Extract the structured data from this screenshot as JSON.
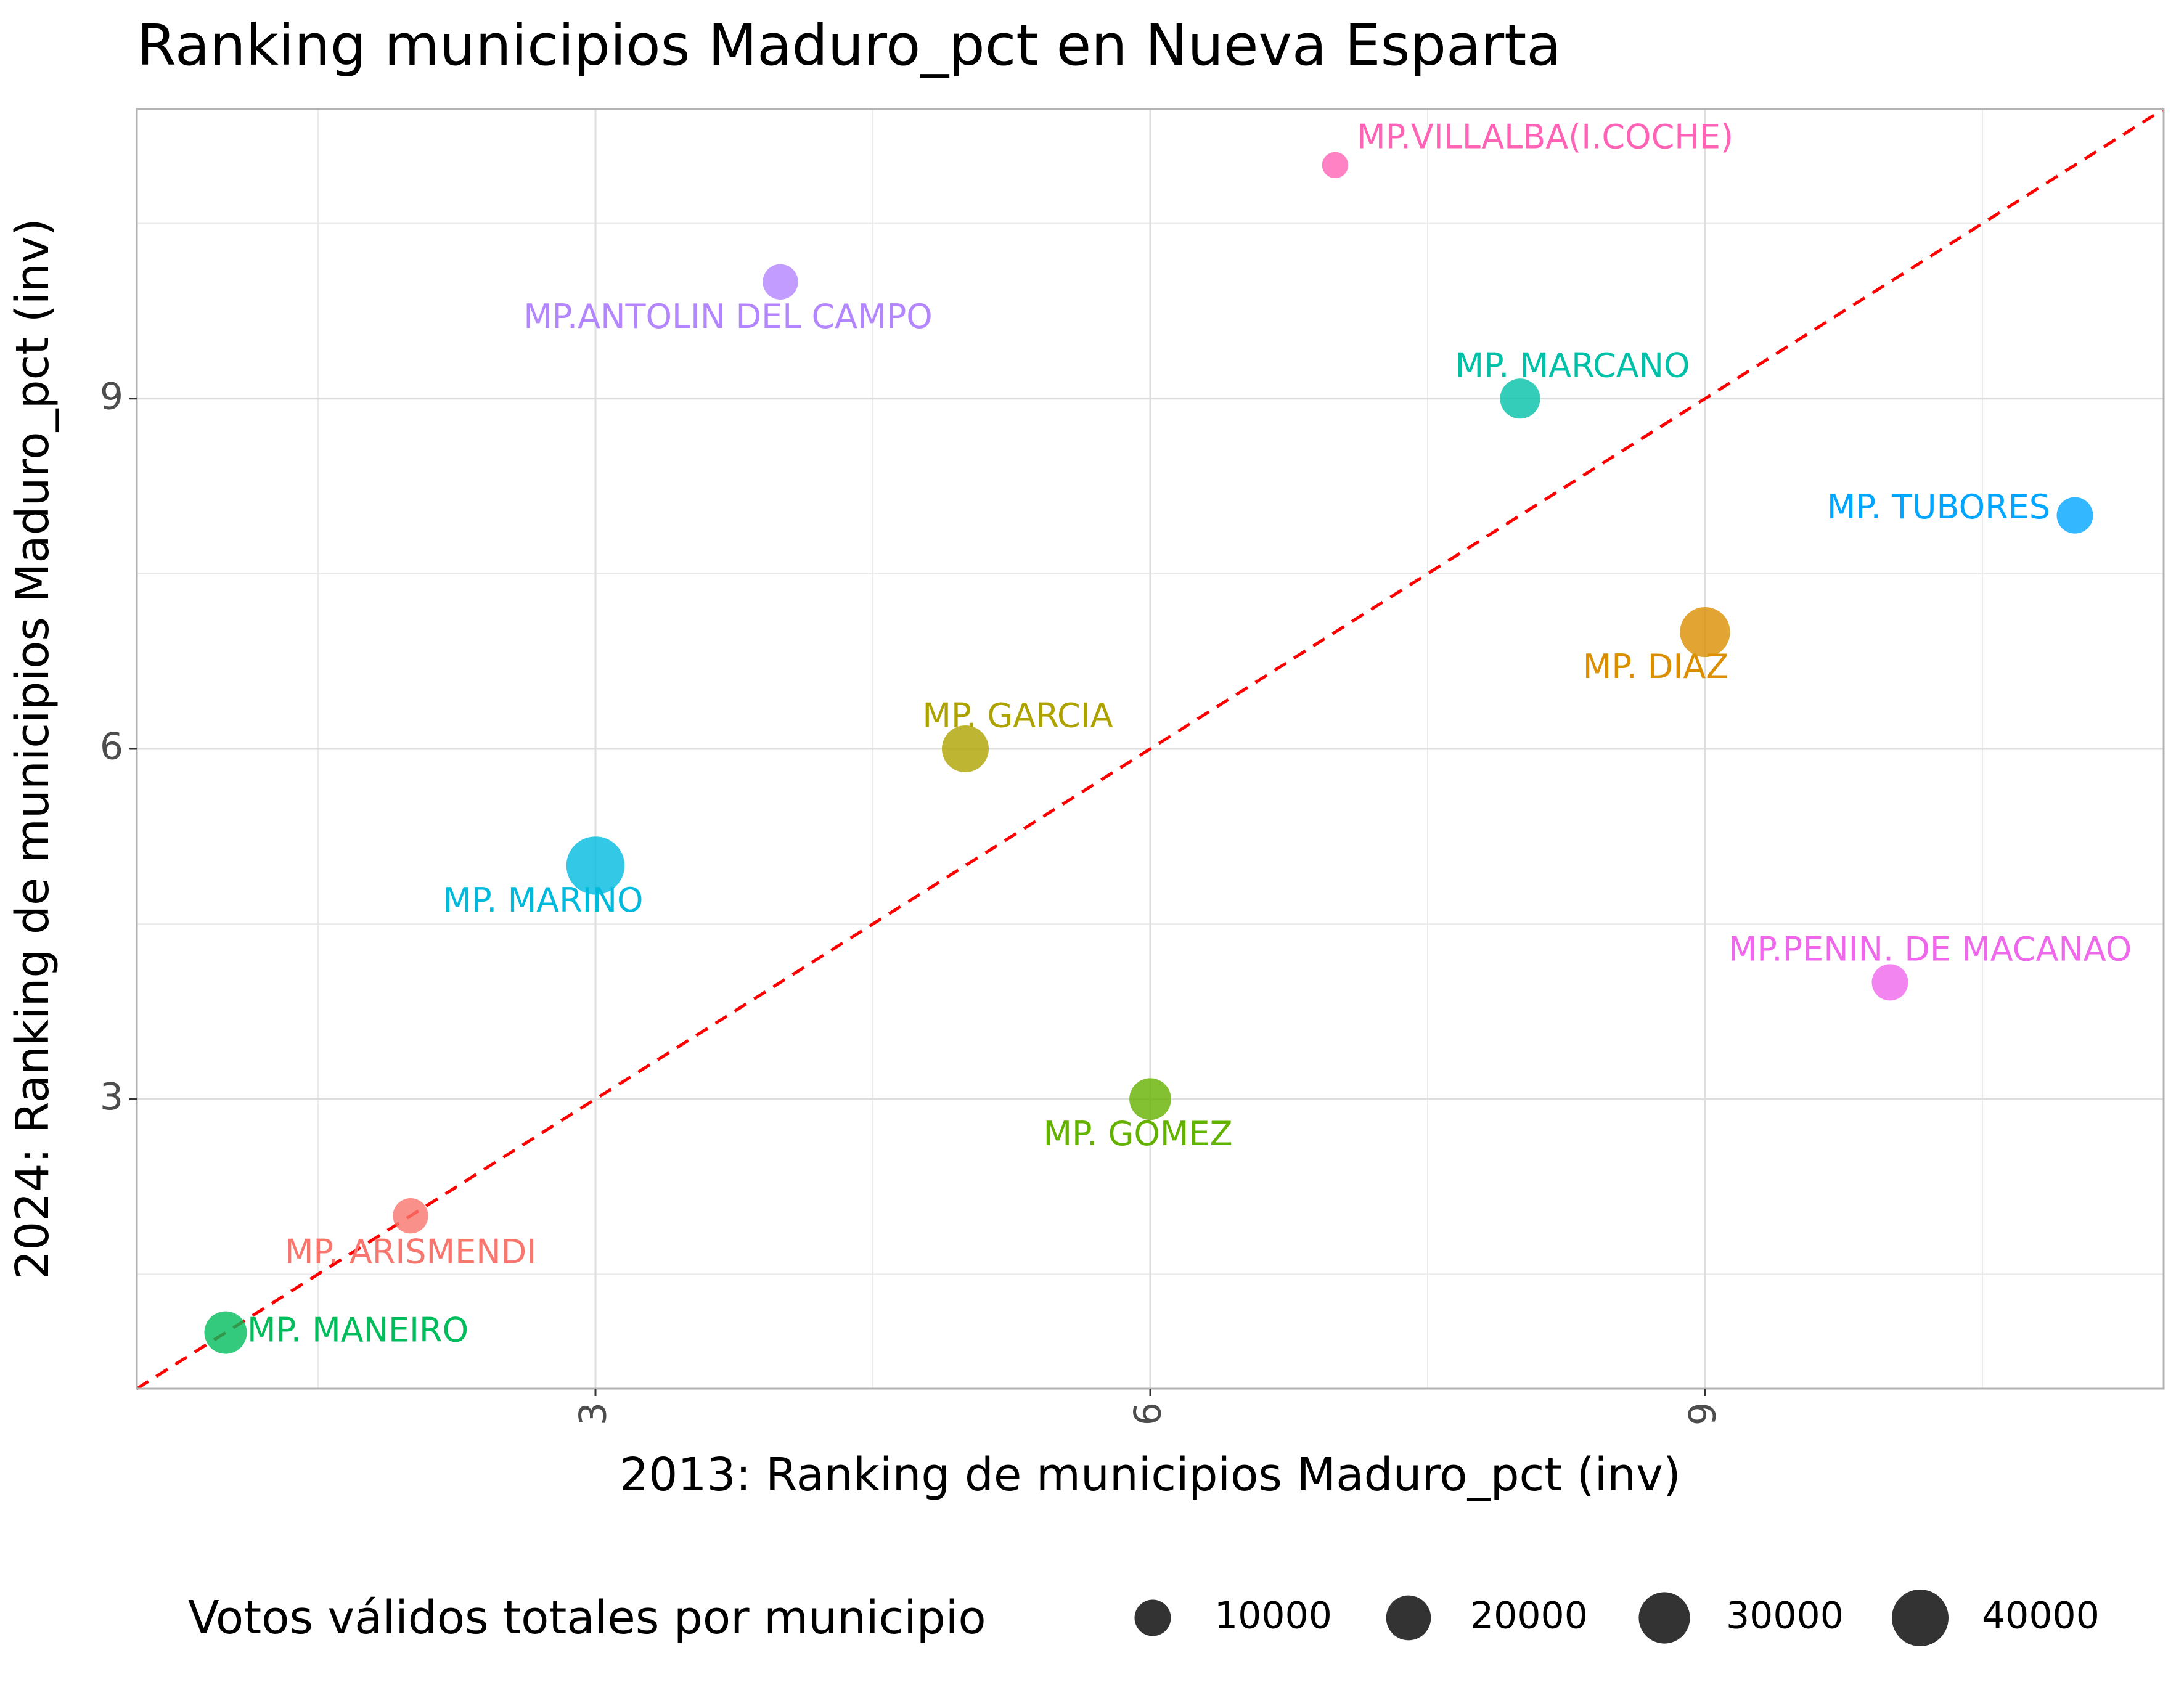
{
  "chart_data": {
    "type": "scatter",
    "title": "Ranking municipios Maduro_pct en Nueva Esparta",
    "xlabel": "2013: Ranking de municipios Maduro_pct (inv)",
    "ylabel": "2024: Ranking de municipios Maduro_pct (inv)",
    "xlim": [
      0.52,
      11.48
    ],
    "ylim": [
      0.52,
      11.48
    ],
    "xticks": [
      3,
      6,
      9
    ],
    "yticks": [
      3,
      6,
      9
    ],
    "grid": true,
    "reference_line": {
      "type": "identity",
      "style": "dashed",
      "color": "#ff0000"
    },
    "points": [
      {
        "label": "MP. ARISMENDI",
        "x": 2,
        "y": 2,
        "votes": 9000,
        "color": "#F8766D"
      },
      {
        "label": "MP. DIAZ",
        "x": 9,
        "y": 7,
        "votes": 28000,
        "color": "#DB8E00"
      },
      {
        "label": "MP. GARCIA",
        "x": 5,
        "y": 6,
        "votes": 23000,
        "color": "#AEA200"
      },
      {
        "label": "MP. GOMEZ",
        "x": 6,
        "y": 3,
        "votes": 16000,
        "color": "#64B200"
      },
      {
        "label": "MP. MANEIRO",
        "x": 1,
        "y": 1,
        "votes": 17000,
        "color": "#00BD5C"
      },
      {
        "label": "MP. MARCANO",
        "x": 8,
        "y": 9,
        "votes": 14000,
        "color": "#00C1A7"
      },
      {
        "label": "MP. MARINO",
        "x": 3,
        "y": 5,
        "votes": 43000,
        "color": "#00BADE"
      },
      {
        "label": "MP. TUBORES",
        "x": 11,
        "y": 8,
        "votes": 10000,
        "color": "#00A6FF"
      },
      {
        "label": "MP.ANTOLIN DEL CAMPO",
        "x": 4,
        "y": 10,
        "votes": 9000,
        "color": "#B385FF"
      },
      {
        "label": "MP.PENIN. DE MACANAO",
        "x": 10,
        "y": 4,
        "votes": 10000,
        "color": "#EF67EB"
      },
      {
        "label": "MP.VILLALBA(I.COCHE)",
        "x": 7,
        "y": 11,
        "votes": 2500,
        "color": "#FF63B6"
      }
    ],
    "legend": {
      "title": "Votos válidos totales por municipio",
      "position": "bottom",
      "entries": [
        {
          "label": "10000",
          "value": 10000
        },
        {
          "label": "20000",
          "value": 20000
        },
        {
          "label": "30000",
          "value": 30000
        },
        {
          "label": "40000",
          "value": 40000
        }
      ]
    }
  }
}
